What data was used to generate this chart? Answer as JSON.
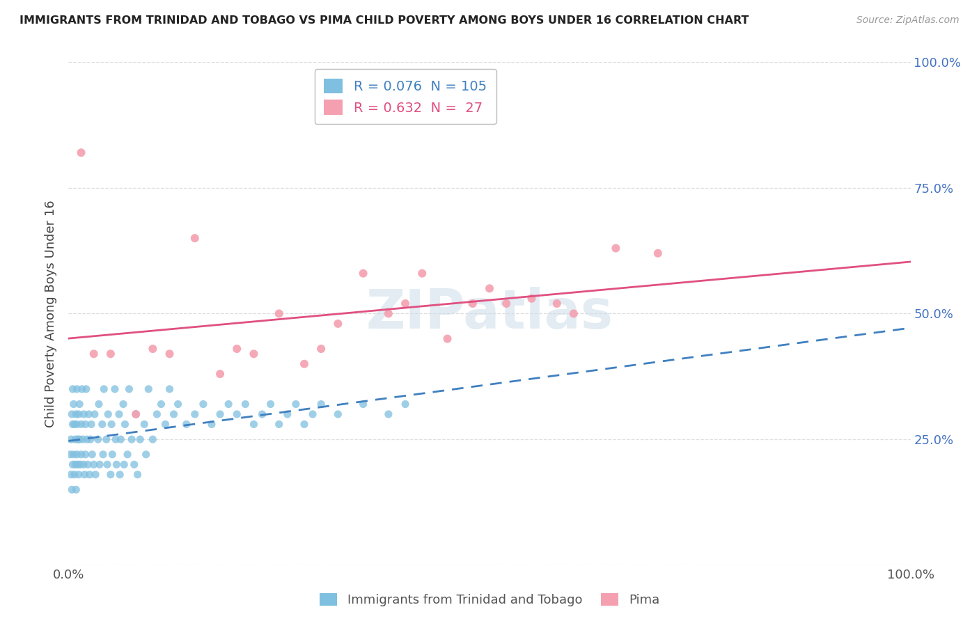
{
  "title": "IMMIGRANTS FROM TRINIDAD AND TOBAGO VS PIMA CHILD POVERTY AMONG BOYS UNDER 16 CORRELATION CHART",
  "source": "Source: ZipAtlas.com",
  "ylabel": "Child Poverty Among Boys Under 16",
  "blue_R": 0.076,
  "blue_N": 105,
  "pink_R": 0.632,
  "pink_N": 27,
  "blue_color": "#7fbfdf",
  "pink_color": "#f4a0b0",
  "blue_line_color": "#4080c0",
  "pink_line_color": "#e05080",
  "legend_labels": [
    "Immigrants from Trinidad and Tobago",
    "Pima"
  ],
  "blue_scatter_x": [
    0.2,
    0.3,
    0.3,
    0.4,
    0.4,
    0.5,
    0.5,
    0.5,
    0.6,
    0.6,
    0.7,
    0.7,
    0.8,
    0.8,
    0.9,
    0.9,
    1.0,
    1.0,
    1.0,
    1.1,
    1.1,
    1.2,
    1.2,
    1.3,
    1.3,
    1.4,
    1.5,
    1.5,
    1.6,
    1.7,
    1.8,
    1.8,
    1.9,
    2.0,
    2.0,
    2.1,
    2.2,
    2.3,
    2.4,
    2.5,
    2.6,
    2.7,
    2.8,
    3.0,
    3.1,
    3.2,
    3.5,
    3.6,
    3.7,
    4.0,
    4.1,
    4.2,
    4.5,
    4.6,
    4.7,
    5.0,
    5.1,
    5.2,
    5.5,
    5.6,
    5.7,
    6.0,
    6.1,
    6.2,
    6.5,
    6.6,
    6.7,
    7.0,
    7.2,
    7.5,
    7.8,
    8.0,
    8.2,
    8.5,
    9.0,
    9.2,
    9.5,
    10.0,
    10.5,
    11.0,
    11.5,
    12.0,
    12.5,
    13.0,
    14.0,
    15.0,
    16.0,
    17.0,
    18.0,
    19.0,
    20.0,
    21.0,
    22.0,
    23.0,
    24.0,
    25.0,
    26.0,
    27.0,
    28.0,
    29.0,
    30.0,
    32.0,
    35.0,
    38.0,
    40.0
  ],
  "blue_scatter_y": [
    22,
    25,
    18,
    30,
    15,
    28,
    20,
    35,
    22,
    32,
    18,
    28,
    25,
    20,
    30,
    15,
    28,
    22,
    35,
    25,
    20,
    30,
    18,
    25,
    32,
    20,
    28,
    22,
    35,
    25,
    20,
    30,
    18,
    28,
    22,
    35,
    25,
    20,
    30,
    18,
    25,
    28,
    22,
    20,
    30,
    18,
    25,
    32,
    20,
    28,
    22,
    35,
    25,
    20,
    30,
    18,
    28,
    22,
    35,
    25,
    20,
    30,
    18,
    25,
    32,
    20,
    28,
    22,
    35,
    25,
    20,
    30,
    18,
    25,
    28,
    22,
    35,
    25,
    30,
    32,
    28,
    35,
    30,
    32,
    28,
    30,
    32,
    28,
    30,
    32,
    30,
    32,
    28,
    30,
    32,
    28,
    30,
    32,
    28,
    30,
    32,
    30,
    32,
    30,
    32
  ],
  "pink_scatter_x": [
    1.5,
    3.0,
    5.0,
    8.0,
    10.0,
    12.0,
    15.0,
    18.0,
    20.0,
    22.0,
    25.0,
    28.0,
    30.0,
    32.0,
    35.0,
    38.0,
    40.0,
    42.0,
    45.0,
    48.0,
    50.0,
    52.0,
    55.0,
    58.0,
    60.0,
    65.0,
    70.0
  ],
  "pink_scatter_y": [
    82,
    42,
    42,
    30,
    43,
    42,
    65,
    38,
    43,
    42,
    50,
    40,
    43,
    48,
    58,
    50,
    52,
    58,
    45,
    52,
    55,
    52,
    53,
    52,
    50,
    63,
    62
  ],
  "xmin": 0,
  "xmax": 100,
  "ymin": 0,
  "ymax": 100,
  "grid_color": "#dddddd"
}
